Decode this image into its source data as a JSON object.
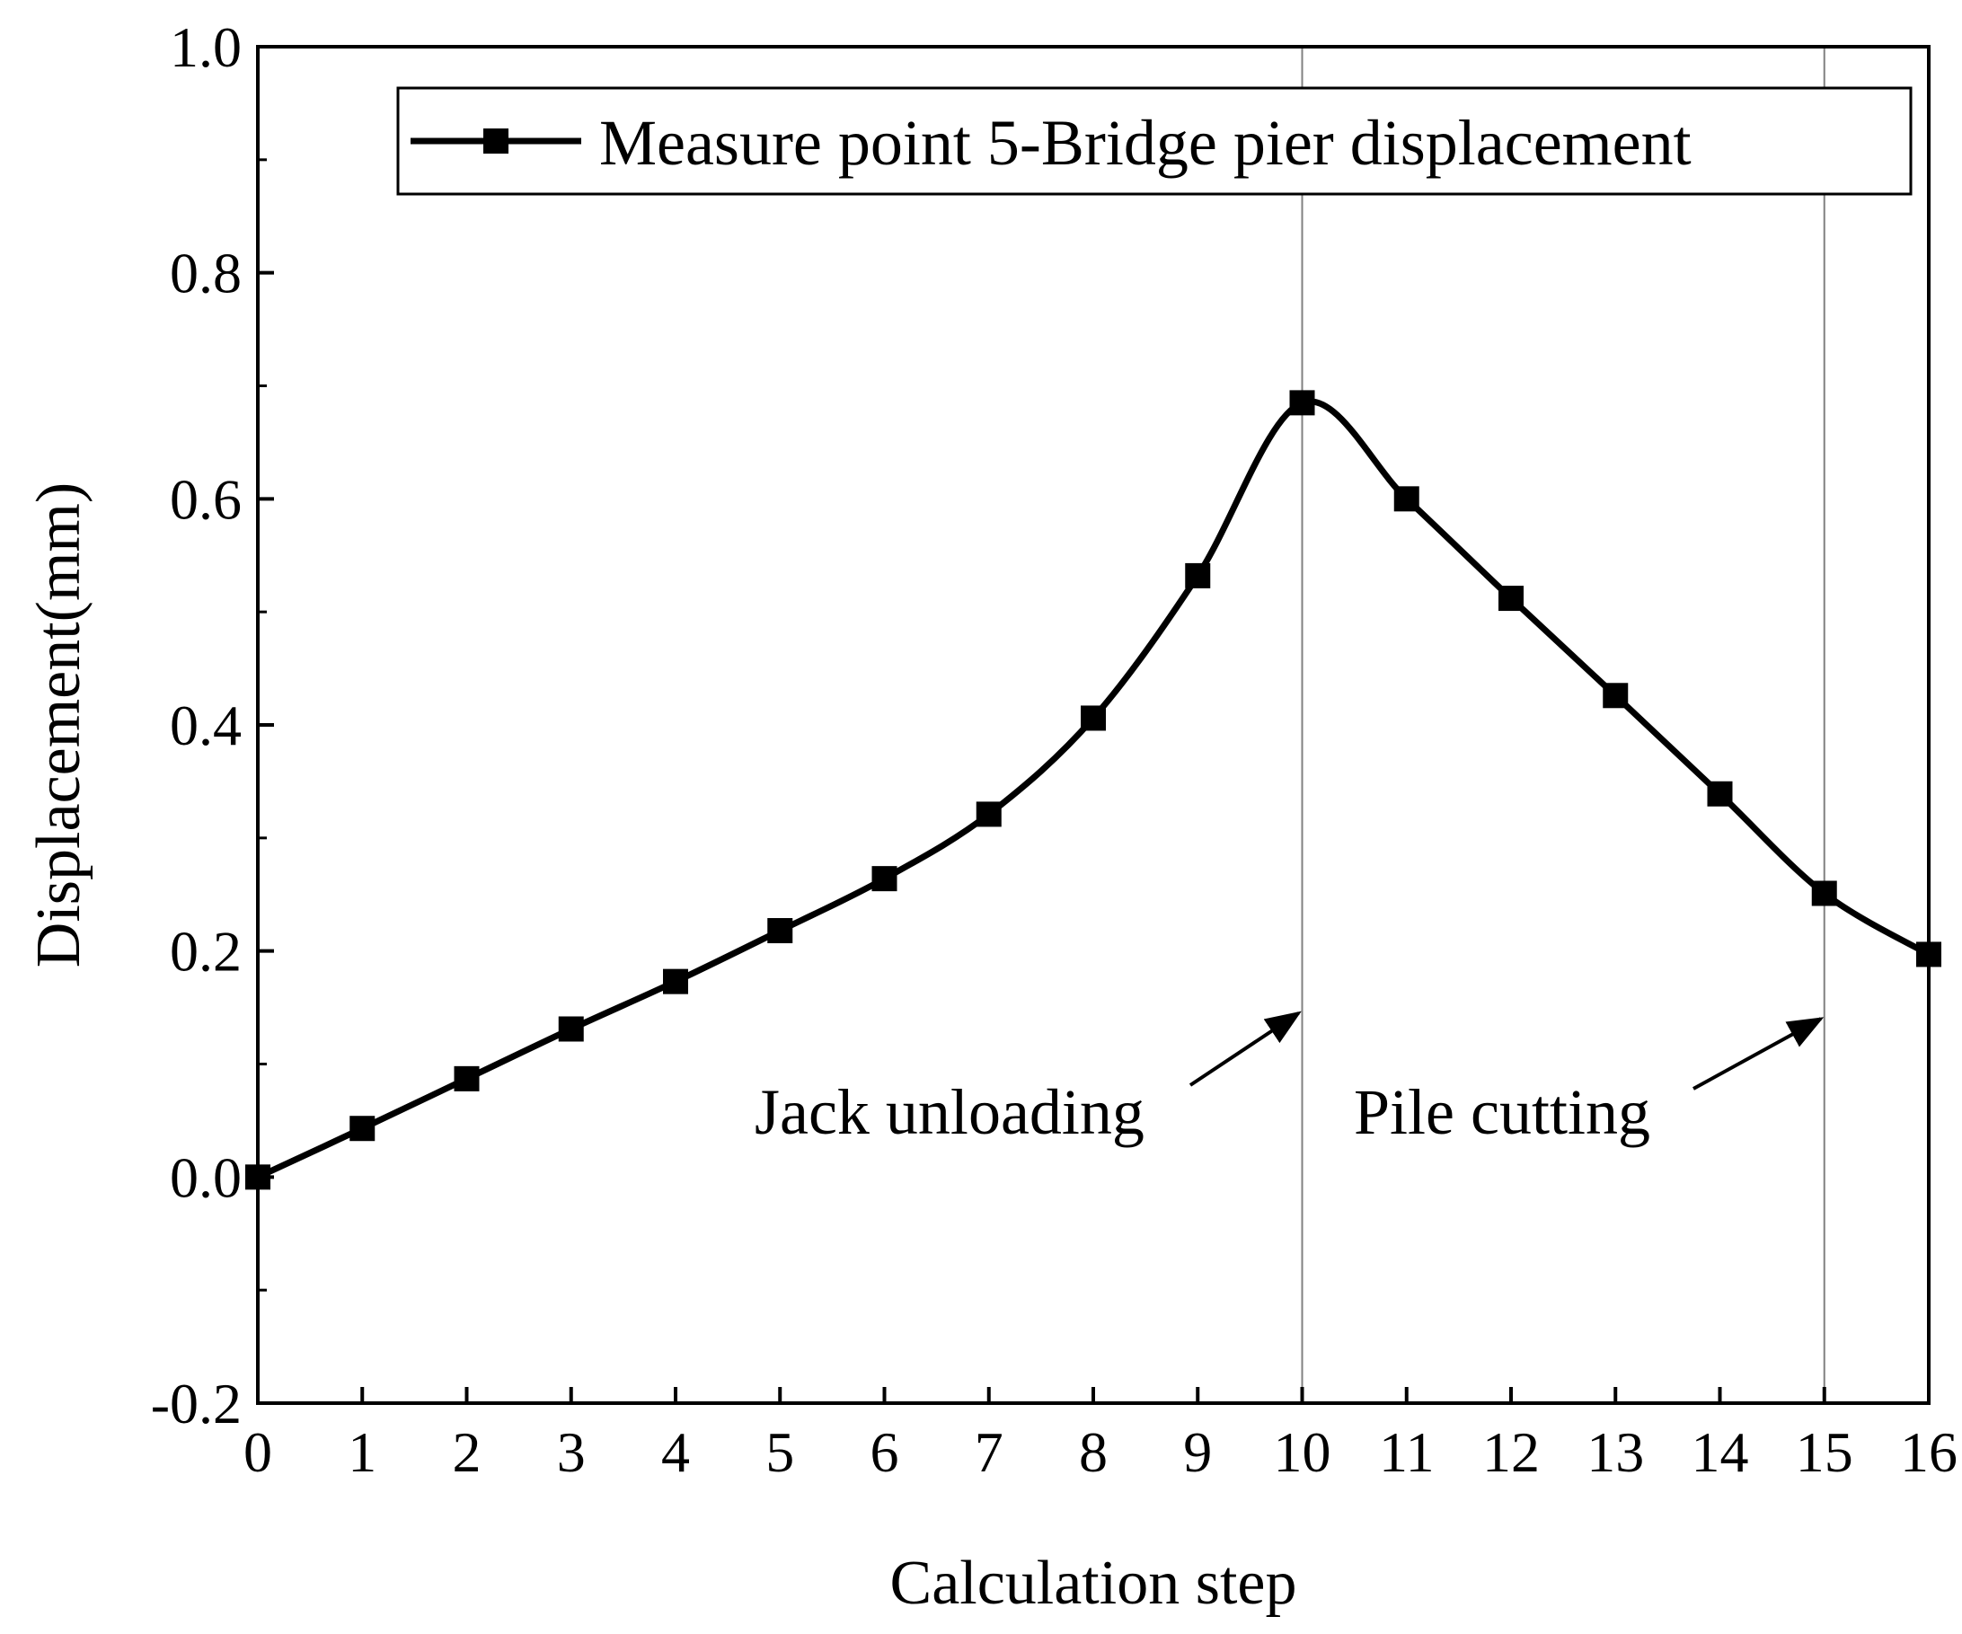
{
  "chart_data": {
    "type": "line",
    "title": "",
    "xlabel": "Calculation step",
    "ylabel": "Displacement(mm)",
    "xlim": [
      0,
      16
    ],
    "ylim": [
      -0.2,
      1.0
    ],
    "x_ticks": [
      "0",
      "1",
      "2",
      "3",
      "4",
      "5",
      "6",
      "7",
      "8",
      "9",
      "10",
      "11",
      "12",
      "13",
      "14",
      "15",
      "16"
    ],
    "y_ticks": [
      "-0.2",
      "0.0",
      "0.2",
      "0.4",
      "0.6",
      "0.8",
      "1.0"
    ],
    "y_tick_values": [
      -0.2,
      0.0,
      0.2,
      0.4,
      0.6,
      0.8,
      1.0
    ],
    "grid": false,
    "legend_position": "top-right",
    "series": [
      {
        "name": "Measure point 5-Bridge pier displacement",
        "color": "#000000",
        "marker": "square",
        "x": [
          0,
          1,
          2,
          3,
          4,
          5,
          6,
          7,
          8,
          9,
          10,
          11,
          12,
          13,
          14,
          15,
          16
        ],
        "values": [
          0.0,
          0.043,
          0.087,
          0.131,
          0.173,
          0.218,
          0.264,
          0.321,
          0.406,
          0.532,
          0.685,
          0.6,
          0.512,
          0.426,
          0.339,
          0.251,
          0.197
        ]
      }
    ],
    "reference_lines": [
      {
        "x": 10,
        "color": "#808080"
      },
      {
        "x": 15,
        "color": "#808080"
      }
    ],
    "annotations": [
      {
        "text": "Jack unloading",
        "arrow_to_x": 10,
        "arrow_to_y": 0.145
      },
      {
        "text": "Pile cutting",
        "arrow_to_x": 15,
        "arrow_to_y": 0.14
      }
    ]
  }
}
